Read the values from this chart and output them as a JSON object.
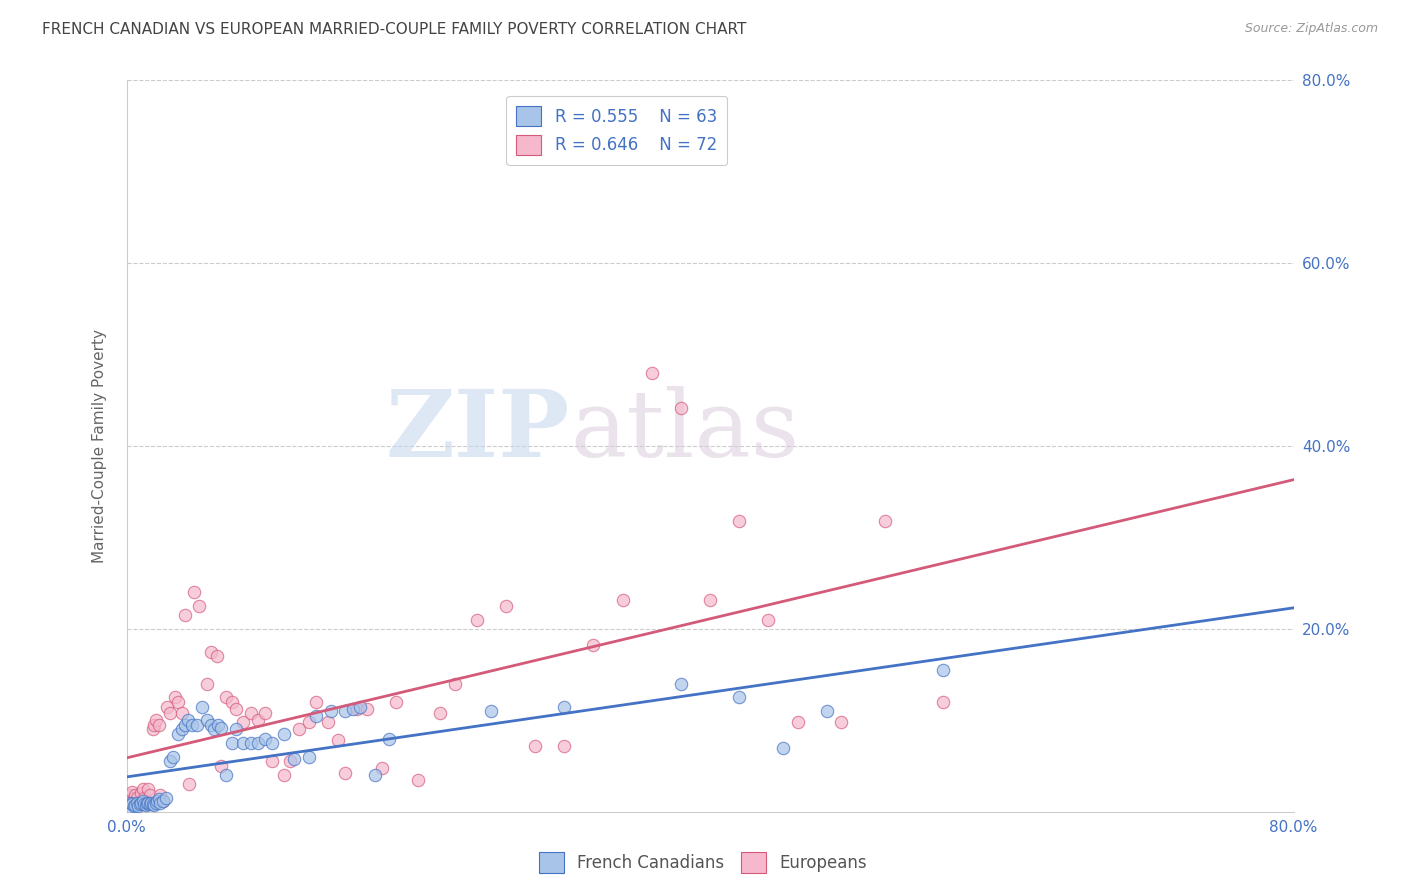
{
  "title": "FRENCH CANADIAN VS EUROPEAN MARRIED-COUPLE FAMILY POVERTY CORRELATION CHART",
  "source": "Source: ZipAtlas.com",
  "ylabel": "Married-Couple Family Poverty",
  "xlim": [
    0.0,
    0.8
  ],
  "ylim": [
    0.0,
    0.8
  ],
  "watermark_zip": "ZIP",
  "watermark_atlas": "atlas",
  "legend_r1": "R = 0.555",
  "legend_n1": "N = 63",
  "legend_r2": "R = 0.646",
  "legend_n2": "N = 72",
  "blue_scatter_color": "#a8c4e8",
  "pink_scatter_color": "#f5b8cc",
  "blue_line_color": "#4472c4",
  "pink_line_color": "#d45a7a",
  "axis_tick_color": "#4472c4",
  "title_color": "#444444",
  "ylabel_color": "#666666",
  "source_color": "#999999",
  "grid_color": "#cccccc",
  "french_canadians_x": [
    0.002,
    0.003,
    0.004,
    0.005,
    0.006,
    0.007,
    0.008,
    0.009,
    0.01,
    0.011,
    0.012,
    0.013,
    0.014,
    0.015,
    0.016,
    0.017,
    0.018,
    0.019,
    0.02,
    0.021,
    0.022,
    0.023,
    0.025,
    0.027,
    0.03,
    0.032,
    0.035,
    0.038,
    0.04,
    0.042,
    0.045,
    0.048,
    0.052,
    0.055,
    0.058,
    0.06,
    0.063,
    0.065,
    0.068,
    0.072,
    0.075,
    0.08,
    0.085,
    0.09,
    0.095,
    0.1,
    0.108,
    0.115,
    0.125,
    0.13,
    0.14,
    0.15,
    0.155,
    0.16,
    0.17,
    0.18,
    0.25,
    0.3,
    0.38,
    0.42,
    0.45,
    0.48,
    0.56
  ],
  "french_canadians_y": [
    0.005,
    0.01,
    0.008,
    0.006,
    0.007,
    0.009,
    0.006,
    0.008,
    0.01,
    0.012,
    0.008,
    0.007,
    0.009,
    0.01,
    0.008,
    0.01,
    0.008,
    0.007,
    0.01,
    0.012,
    0.014,
    0.01,
    0.012,
    0.015,
    0.055,
    0.06,
    0.085,
    0.09,
    0.095,
    0.1,
    0.095,
    0.095,
    0.115,
    0.1,
    0.095,
    0.09,
    0.095,
    0.092,
    0.04,
    0.075,
    0.09,
    0.075,
    0.075,
    0.075,
    0.08,
    0.075,
    0.085,
    0.058,
    0.06,
    0.105,
    0.11,
    0.11,
    0.112,
    0.115,
    0.04,
    0.08,
    0.11,
    0.115,
    0.14,
    0.125,
    0.07,
    0.11,
    0.155
  ],
  "europeans_x": [
    0.002,
    0.003,
    0.004,
    0.005,
    0.006,
    0.007,
    0.008,
    0.009,
    0.01,
    0.011,
    0.012,
    0.013,
    0.014,
    0.015,
    0.016,
    0.018,
    0.019,
    0.02,
    0.022,
    0.023,
    0.025,
    0.028,
    0.03,
    0.033,
    0.035,
    0.038,
    0.04,
    0.043,
    0.046,
    0.05,
    0.055,
    0.058,
    0.062,
    0.065,
    0.068,
    0.072,
    0.075,
    0.08,
    0.085,
    0.09,
    0.095,
    0.1,
    0.108,
    0.112,
    0.118,
    0.125,
    0.13,
    0.138,
    0.145,
    0.15,
    0.158,
    0.165,
    0.175,
    0.185,
    0.2,
    0.215,
    0.225,
    0.24,
    0.26,
    0.28,
    0.3,
    0.32,
    0.34,
    0.36,
    0.38,
    0.4,
    0.42,
    0.44,
    0.46,
    0.49,
    0.52,
    0.56
  ],
  "europeans_y": [
    0.012,
    0.018,
    0.022,
    0.015,
    0.018,
    0.015,
    0.01,
    0.008,
    0.02,
    0.025,
    0.015,
    0.01,
    0.008,
    0.025,
    0.018,
    0.09,
    0.095,
    0.1,
    0.095,
    0.018,
    0.012,
    0.115,
    0.108,
    0.125,
    0.12,
    0.108,
    0.215,
    0.03,
    0.24,
    0.225,
    0.14,
    0.175,
    0.17,
    0.05,
    0.125,
    0.12,
    0.112,
    0.098,
    0.108,
    0.1,
    0.108,
    0.055,
    0.04,
    0.055,
    0.09,
    0.098,
    0.12,
    0.098,
    0.078,
    0.042,
    0.112,
    0.112,
    0.048,
    0.12,
    0.035,
    0.108,
    0.14,
    0.21,
    0.225,
    0.072,
    0.072,
    0.182,
    0.232,
    0.48,
    0.442,
    0.232,
    0.318,
    0.21,
    0.098,
    0.098,
    0.318,
    0.12
  ]
}
